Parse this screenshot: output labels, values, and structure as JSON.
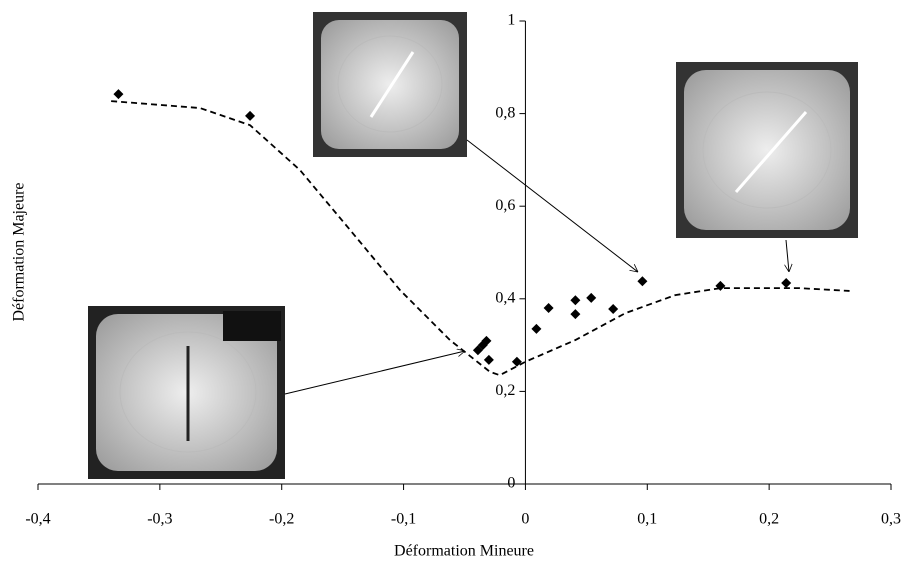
{
  "chart_data": {
    "type": "scatter",
    "x_label": "Déformation Mineure",
    "y_label": "Déformation Majeure",
    "xlim": [
      -0.4,
      0.3
    ],
    "xticks": [
      {
        "value": -0.4,
        "label": "-0,4"
      },
      {
        "value": -0.3,
        "label": "-0,3"
      },
      {
        "value": -0.2,
        "label": "-0,2"
      },
      {
        "value": -0.1,
        "label": "-0,1"
      },
      0,
      {
        "value": 0.1,
        "label": "0,1"
      },
      {
        "value": 0.2,
        "label": "0,2"
      },
      {
        "value": 0.3,
        "label": "0,3"
      }
    ],
    "ylim": [
      0,
      1
    ],
    "yticks": [
      0,
      {
        "value": 0.2,
        "label": "0,2"
      },
      {
        "value": 0.4,
        "label": "0,4"
      },
      {
        "value": 0.6,
        "label": "0,6"
      },
      {
        "value": 0.8,
        "label": "0,8"
      },
      1
    ],
    "series": [
      {
        "type": "scatter",
        "color": "#000000",
        "x": [
          -0.334,
          -0.226,
          -0.039,
          -0.035,
          -0.032,
          -0.03,
          -0.007,
          0.009,
          0.019,
          0.041,
          0.041,
          0.054,
          0.072,
          0.096,
          0.16,
          0.214
        ],
        "values": [
          0.842,
          0.795,
          0.289,
          0.3,
          0.309,
          0.268,
          0.264,
          0.335,
          0.38,
          0.397,
          0.367,
          0.402,
          0.378,
          0.438,
          0.428,
          0.434
        ]
      },
      {
        "type": "line",
        "dashed": true,
        "color": "#000000",
        "x": [
          -0.34,
          -0.267,
          -0.226,
          -0.185,
          -0.144,
          -0.103,
          -0.062,
          -0.029,
          -0.021,
          0,
          0.041,
          0.082,
          0.123,
          0.16,
          0.225,
          0.266
        ],
        "values": [
          0.827,
          0.812,
          0.775,
          0.678,
          0.549,
          0.419,
          0.311,
          0.242,
          0.235,
          0.264,
          0.311,
          0.369,
          0.408,
          0.423,
          0.423,
          0.417
        ]
      }
    ]
  }
}
